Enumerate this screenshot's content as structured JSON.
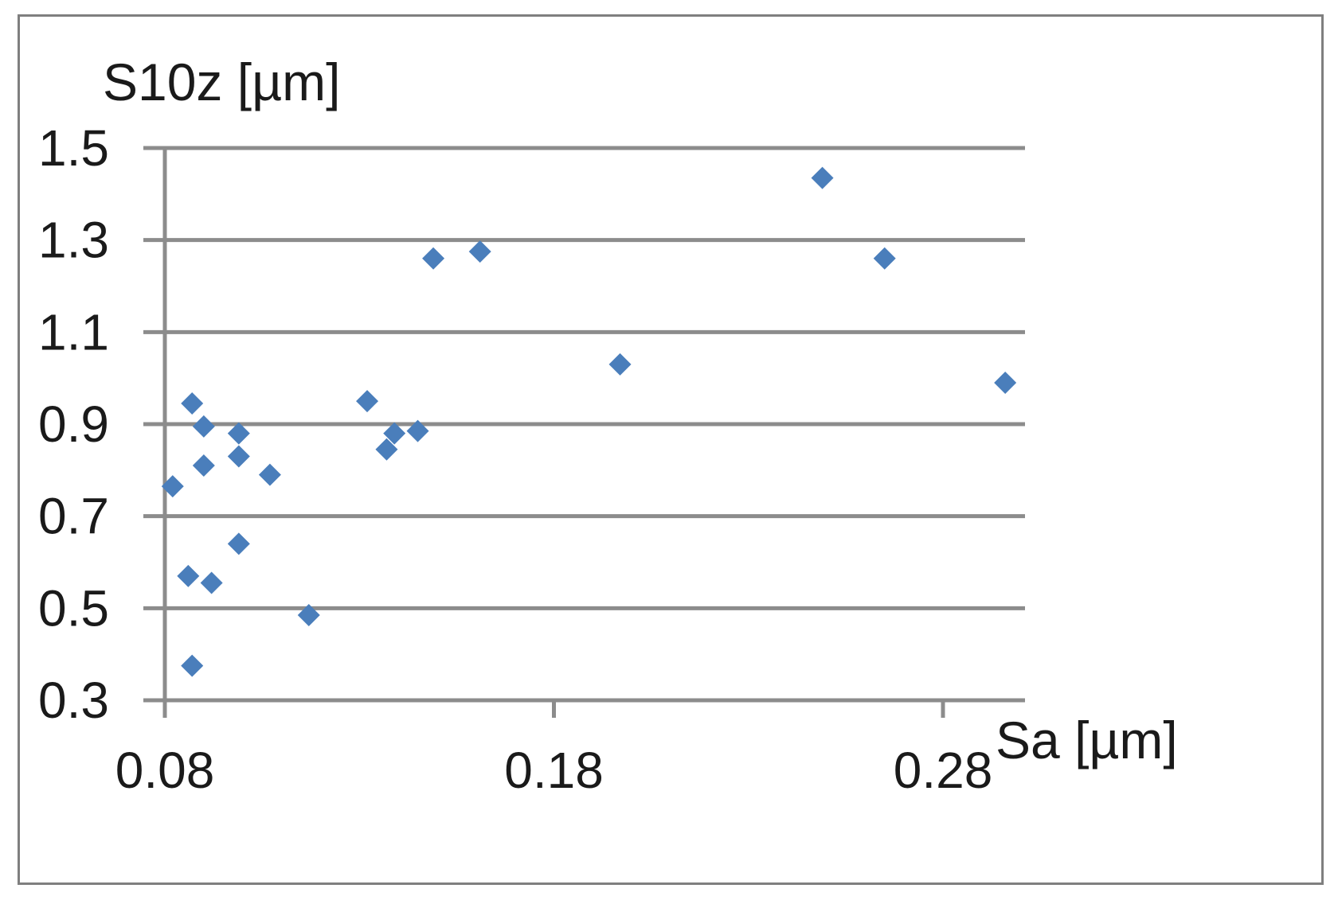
{
  "chart_data": {
    "type": "scatter",
    "title": "",
    "xlabel": "Sa [µm]",
    "ylabel": "S10z [µm]",
    "xlim": [
      0.08,
      0.3
    ],
    "ylim": [
      0.3,
      1.5
    ],
    "x_ticks": [
      "0.08",
      "0.18",
      "0.28"
    ],
    "x_tick_values": [
      0.08,
      0.18,
      0.28
    ],
    "y_ticks": [
      "1.5",
      "1.3",
      "1.1",
      "0.9",
      "0.7",
      "0.5",
      "0.3"
    ],
    "y_tick_values": [
      1.5,
      1.3,
      1.1,
      0.9,
      0.7,
      0.5,
      0.3
    ],
    "grid": "horizontal",
    "marker": "diamond",
    "marker_color": "#4a7ebb",
    "series": [
      {
        "points": [
          {
            "x": 0.082,
            "y": 0.765
          },
          {
            "x": 0.086,
            "y": 0.57
          },
          {
            "x": 0.087,
            "y": 0.945
          },
          {
            "x": 0.087,
            "y": 0.375
          },
          {
            "x": 0.09,
            "y": 0.895
          },
          {
            "x": 0.09,
            "y": 0.81
          },
          {
            "x": 0.092,
            "y": 0.555
          },
          {
            "x": 0.099,
            "y": 0.88
          },
          {
            "x": 0.099,
            "y": 0.83
          },
          {
            "x": 0.099,
            "y": 0.64
          },
          {
            "x": 0.107,
            "y": 0.79
          },
          {
            "x": 0.117,
            "y": 0.485
          },
          {
            "x": 0.132,
            "y": 0.95
          },
          {
            "x": 0.137,
            "y": 0.845
          },
          {
            "x": 0.139,
            "y": 0.88
          },
          {
            "x": 0.145,
            "y": 0.885
          },
          {
            "x": 0.149,
            "y": 1.26
          },
          {
            "x": 0.161,
            "y": 1.275
          },
          {
            "x": 0.197,
            "y": 1.03
          },
          {
            "x": 0.249,
            "y": 1.435
          },
          {
            "x": 0.265,
            "y": 1.26
          },
          {
            "x": 0.296,
            "y": 0.99
          }
        ]
      }
    ]
  }
}
